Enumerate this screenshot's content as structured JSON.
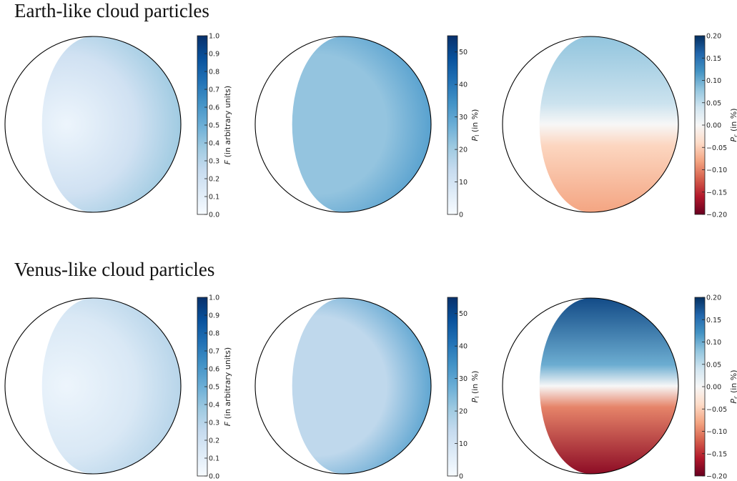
{
  "rows": [
    {
      "title": "Earth-like cloud particles"
    },
    {
      "title": "Venus-like cloud particles"
    }
  ],
  "colorbars": {
    "flux": {
      "label": "F (in arbitrary units)",
      "ticks": [
        "0.0",
        "0.1",
        "0.2",
        "0.3",
        "0.4",
        "0.5",
        "0.6",
        "0.7",
        "0.8",
        "0.9",
        "1.0"
      ],
      "range": [
        0,
        1.0
      ],
      "colormap": "Blues"
    },
    "linear": {
      "label": "P_l (in %)",
      "ticks": [
        "0",
        "10",
        "20",
        "30",
        "40",
        "50"
      ],
      "range": [
        0,
        55
      ],
      "colormap": "Blues"
    },
    "circular": {
      "label": "P_c (in %)",
      "ticks": [
        "−0.20",
        "−0.15",
        "−0.10",
        "−0.05",
        "0.00",
        "0.05",
        "0.10",
        "0.15",
        "0.20"
      ],
      "range": [
        -0.2,
        0.2
      ],
      "colormap": "RdBu"
    }
  },
  "colors": {
    "blues_low": "#f7fbff",
    "blues_high": "#08306b",
    "red_high": "#67001f",
    "neutral": "#f7f7f7"
  },
  "chart_data": [
    {
      "type": "heatmap",
      "row": "Earth-like cloud particles",
      "quantity": "F",
      "label": "F (in arbitrary units)",
      "range": [
        0,
        1.0
      ],
      "phase_terminator_offset": -0.58,
      "approx_values": {
        "limb_edge": 0.55,
        "disk_center": 0.2,
        "terminator": 0.05
      }
    },
    {
      "type": "heatmap",
      "row": "Earth-like cloud particles",
      "quantity": "P_l",
      "label": "P_l (in %)",
      "range": [
        0,
        55
      ],
      "phase_terminator_offset": -0.58,
      "approx_values": {
        "limb_edge": 40,
        "disk_center": 22
      }
    },
    {
      "type": "heatmap",
      "row": "Earth-like cloud particles",
      "quantity": "P_c",
      "label": "P_c (in %)",
      "range": [
        -0.2,
        0.2
      ],
      "phase_terminator_offset": -0.58,
      "approx_values": {
        "upper_right": 0.08,
        "lower_right": -0.08,
        "equator": 0.0
      }
    },
    {
      "type": "heatmap",
      "row": "Venus-like cloud particles",
      "quantity": "F",
      "label": "F (in arbitrary units)",
      "range": [
        0,
        1.0
      ],
      "phase_terminator_offset": -0.58,
      "approx_values": {
        "limb_edge": 0.45,
        "disk_center": 0.15,
        "terminator": 0.05
      }
    },
    {
      "type": "heatmap",
      "row": "Venus-like cloud particles",
      "quantity": "P_l",
      "label": "P_l (in %)",
      "range": [
        0,
        55
      ],
      "phase_terminator_offset": -0.58,
      "approx_values": {
        "limb_edge": 45,
        "disk_center": 15
      }
    },
    {
      "type": "heatmap",
      "row": "Venus-like cloud particles",
      "quantity": "P_c",
      "label": "P_c (in %)",
      "range": [
        -0.2,
        0.2
      ],
      "phase_terminator_offset": -0.58,
      "approx_values": {
        "north_pole": 0.18,
        "south_pole": -0.18,
        "equator": 0.0
      }
    }
  ]
}
